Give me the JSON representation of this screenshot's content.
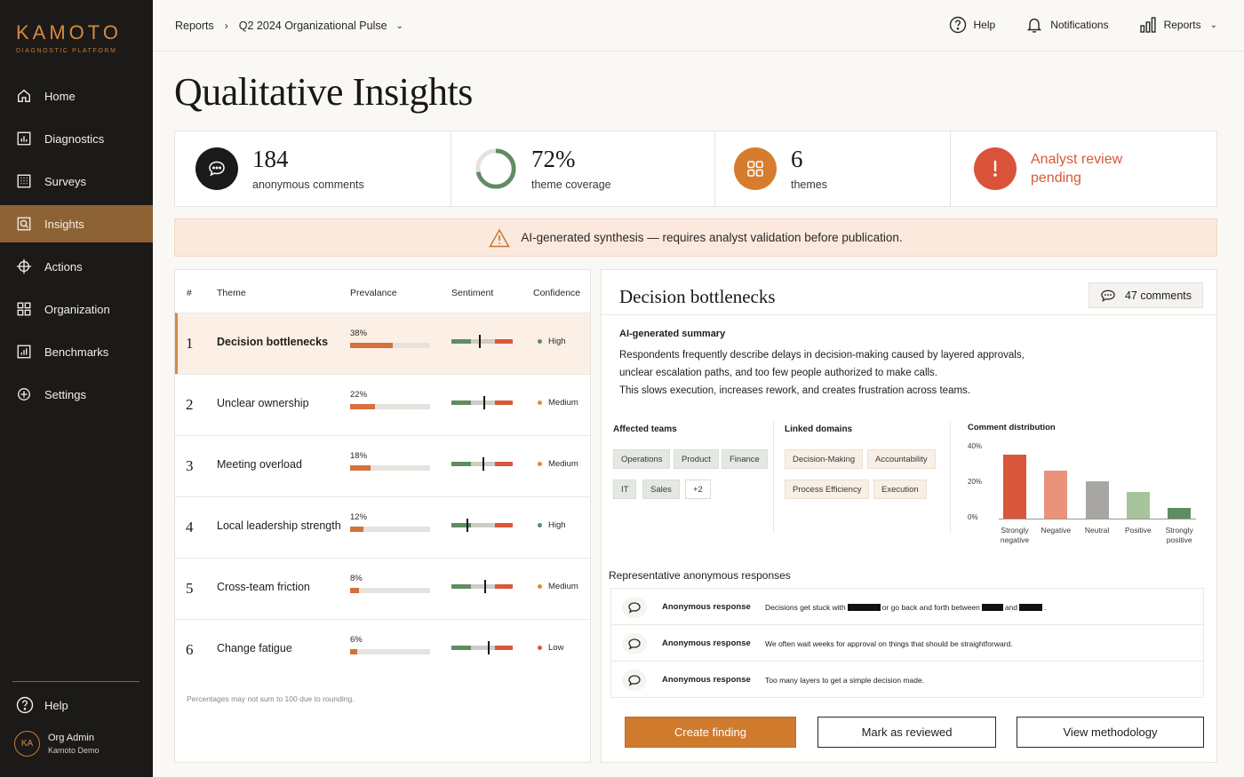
{
  "brand": {
    "name": "KAMOTO",
    "subtitle": "DIAGNOSTIC PLATFORM"
  },
  "sidebar": {
    "items": [
      {
        "label": "Home",
        "icon": "home-icon",
        "active": false
      },
      {
        "label": "Diagnostics",
        "icon": "chart-box-icon",
        "active": false
      },
      {
        "label": "Surveys",
        "icon": "grid-icon",
        "active": false
      },
      {
        "label": "Insights",
        "icon": "search-doc-icon",
        "active": true
      },
      {
        "label": "Actions",
        "icon": "crosshair-icon",
        "active": false
      },
      {
        "label": "Organization",
        "icon": "org-grid-icon",
        "active": false
      },
      {
        "label": "Benchmarks",
        "icon": "bar-chart-icon",
        "active": false
      },
      {
        "label": "Settings",
        "icon": "plus-circle-icon",
        "active": false
      }
    ],
    "help_label": "Help",
    "user": {
      "initials": "KA",
      "name": "Org Admin",
      "org": "Kamoto Demo"
    }
  },
  "topbar": {
    "breadcrumb": [
      "Reports",
      "Q2 2024 Organizational Pulse"
    ],
    "help_label": "Help",
    "notifications_label": "Notifications",
    "reports_label": "Reports"
  },
  "page": {
    "title": "Qualitative Insights"
  },
  "kpis": {
    "comments": {
      "value": "184",
      "label": "anonymous comments"
    },
    "coverage": {
      "value": "72%",
      "label": "theme coverage",
      "fraction": 0.72
    },
    "themes": {
      "value": "6",
      "label": "themes"
    },
    "review": {
      "line1": "Analyst review",
      "line2": "pending"
    }
  },
  "banner": {
    "text": "AI-generated synthesis — requires analyst validation before publication."
  },
  "table": {
    "headers": {
      "num": "#",
      "theme": "Theme",
      "prevalence": "Prevalance",
      "sentiment": "Sentiment",
      "confidence": "Confidence"
    },
    "rows": [
      {
        "num": "1",
        "theme": "Decision bottlenecks",
        "pct": "38%",
        "prevalence": 0.38,
        "sentiment_pos": 0.45,
        "confidence": "High",
        "conf_color": "#5f8d63",
        "active": true
      },
      {
        "num": "2",
        "theme": "Unclear ownership",
        "pct": "22%",
        "prevalence": 0.22,
        "sentiment_pos": 0.52,
        "confidence": "Medium",
        "conf_color": "#e08a3c",
        "active": false
      },
      {
        "num": "3",
        "theme": "Meeting overload",
        "pct": "18%",
        "prevalence": 0.18,
        "sentiment_pos": 0.5,
        "confidence": "Medium",
        "conf_color": "#e08a3c",
        "active": false
      },
      {
        "num": "4",
        "theme": "Local leadership strength",
        "pct": "12%",
        "prevalence": 0.12,
        "sentiment_pos": 0.24,
        "confidence": "High",
        "conf_color": "#5f8d63",
        "active": false
      },
      {
        "num": "5",
        "theme": "Cross-team friction",
        "pct": "8%",
        "prevalence": 0.08,
        "sentiment_pos": 0.54,
        "confidence": "Medium",
        "conf_color": "#e08a3c",
        "active": false
      },
      {
        "num": "6",
        "theme": "Change fatigue",
        "pct": "6%",
        "prevalence": 0.06,
        "sentiment_pos": 0.6,
        "confidence": "Low",
        "conf_color": "#d65a38",
        "active": false
      }
    ],
    "note": "Percentages may not sum to 100 due to rounding."
  },
  "detail": {
    "title": "Decision bottlenecks",
    "comments_label": "47 comments",
    "summary_title": "AI-generated summary",
    "summary_lines": [
      "Respondents frequently describe delays in decision-making caused by layered approvals,",
      "unclear escalation paths, and too few people authorized to make calls.",
      "This slows execution, increases rework, and creates frustration across teams."
    ],
    "affected_teams_title": "Affected teams",
    "teams": [
      "Operations",
      "Product",
      "Finance",
      "IT",
      "Sales",
      "+2"
    ],
    "linked_domains_title": "Linked domains",
    "domains": [
      "Decision-Making",
      "Accountability",
      "Process Efficiency",
      "Execution"
    ],
    "representative_title": "Representative anonymous responses",
    "responses": [
      {
        "label": "Anonymous response",
        "parts": [
          "Decisions get stuck with ",
          "or go back and forth between ",
          "and ",
          "."
        ]
      },
      {
        "label": "Anonymous response",
        "parts": [
          "We often wait weeks for approval on things that should be straightforward."
        ]
      },
      {
        "label": "Anonymous response",
        "parts": [
          "Too many layers to get a simple decision made."
        ]
      }
    ],
    "buttons": {
      "create": "Create finding",
      "review": "Mark as reviewed",
      "methodology": "View methodology"
    }
  },
  "chart_data": {
    "type": "bar",
    "title": "Comment distribution",
    "categories": [
      "Strongly negative",
      "Negative",
      "Neutral",
      "Positive",
      "Strongly positive"
    ],
    "category_lines": [
      [
        "Strongly",
        "negative"
      ],
      [
        "Negative"
      ],
      [
        "Neutral"
      ],
      [
        "Positive"
      ],
      [
        "Strongly",
        "positive"
      ]
    ],
    "values": [
      36,
      27,
      21,
      15,
      6
    ],
    "colors": [
      "#d9573a",
      "#e8937a",
      "#a8a6a3",
      "#a6c59a",
      "#5e8d62"
    ],
    "yticks": [
      "40%",
      "20%",
      "0%"
    ],
    "ylim": [
      0,
      40
    ],
    "grid": false,
    "legend": "none"
  }
}
